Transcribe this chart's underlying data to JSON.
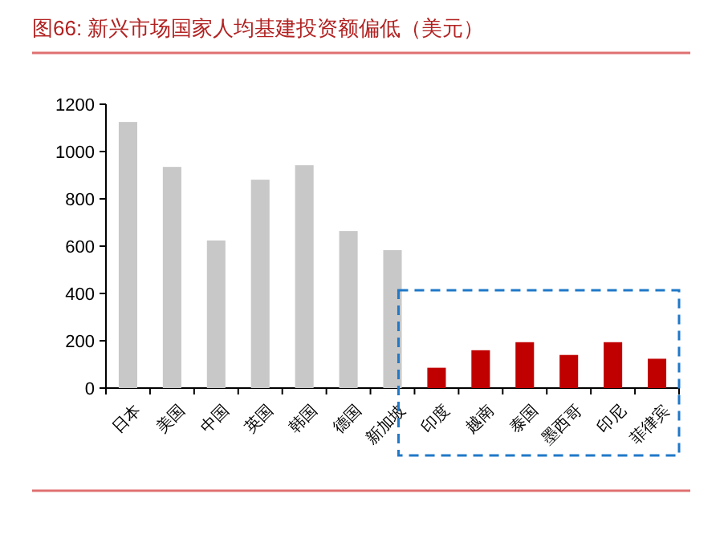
{
  "chart_data": {
    "type": "bar",
    "title": "图66:  新兴市场国家人均基建投资额偏低（美元）",
    "categories": [
      "日本",
      "美国",
      "中国",
      "英国",
      "韩国",
      "德国",
      "新加坡",
      "印度",
      "越南",
      "泰国",
      "墨西哥",
      "印尼",
      "菲律宾"
    ],
    "values": [
      1125,
      935,
      624,
      881,
      942,
      664,
      583,
      86,
      160,
      194,
      140,
      194,
      124
    ],
    "colors": [
      "#c8c8c8",
      "#c8c8c8",
      "#c8c8c8",
      "#c8c8c8",
      "#c8c8c8",
      "#c8c8c8",
      "#c8c8c8",
      "#c00000",
      "#c00000",
      "#c00000",
      "#c00000",
      "#c00000",
      "#c00000"
    ],
    "ylim": [
      0,
      1200
    ],
    "yticks": [
      0,
      200,
      400,
      600,
      800,
      1000,
      1200
    ],
    "grid": false
  }
}
